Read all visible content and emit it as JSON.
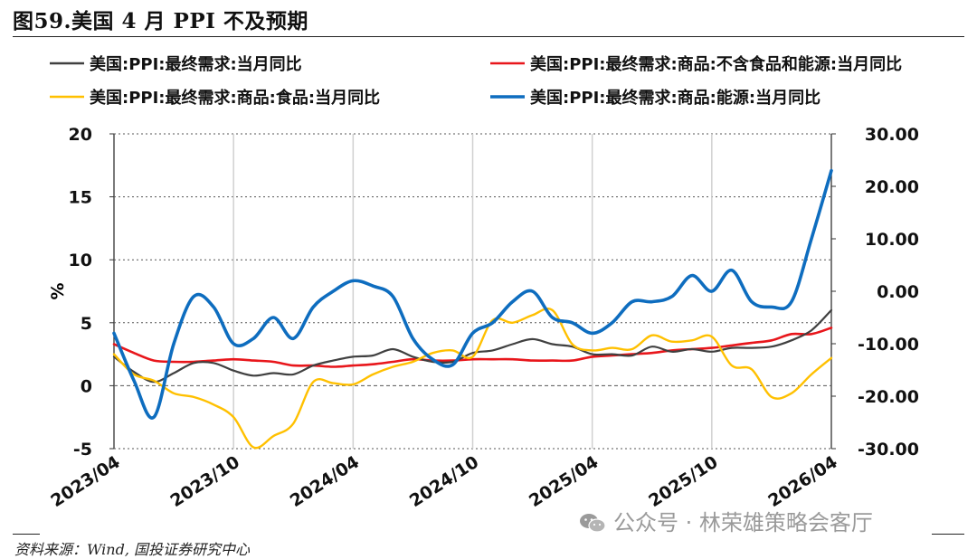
{
  "figure": {
    "title": "图59.美国 4 月 PPI 不及预期",
    "source": "资料来源：Wind, 国投证券研究中心",
    "watermark": "公众号 · 林荣雄策略会客厅"
  },
  "chart_data": {
    "type": "line",
    "title": "",
    "ylabel": "%",
    "ylim": [
      -5,
      20
    ],
    "y_ticks": [
      "20",
      "15",
      "10",
      "5",
      "0",
      "-5"
    ],
    "y2lim": [
      -30,
      30
    ],
    "y2_ticks": [
      "30.00",
      "20.00",
      "10.00",
      "0.00",
      "-10.00",
      "-20.00",
      "-30.00"
    ],
    "x_ticks": [
      "2023/04",
      "2023/10",
      "2024/04",
      "2024/10",
      "2025/04",
      "2025/10",
      "2026/04"
    ],
    "x_range": [
      "2023-04",
      "2026-04"
    ],
    "grid": true,
    "legend_position": "top",
    "series": [
      {
        "name": "美国:PPI:最终需求:当月同比",
        "color": "#404040",
        "axis": "left",
        "x": [
          "2023-04",
          "2023-05",
          "2023-06",
          "2023-07",
          "2023-08",
          "2023-09",
          "2023-10",
          "2023-11",
          "2023-12",
          "2024-01",
          "2024-02",
          "2024-03",
          "2024-04",
          "2024-05",
          "2024-06",
          "2024-07",
          "2024-08",
          "2024-09",
          "2024-10",
          "2024-11",
          "2024-12",
          "2025-01",
          "2025-02",
          "2025-03",
          "2025-04",
          "2025-05",
          "2025-06",
          "2025-07",
          "2025-08",
          "2025-09",
          "2025-10",
          "2025-11",
          "2025-12",
          "2026-01",
          "2026-02",
          "2026-03",
          "2026-04"
        ],
        "values": [
          2.3,
          1.1,
          0.3,
          1.0,
          1.8,
          1.8,
          1.2,
          0.8,
          1.0,
          0.9,
          1.6,
          2.0,
          2.3,
          2.4,
          2.9,
          2.3,
          1.9,
          1.9,
          2.6,
          2.8,
          3.3,
          3.7,
          3.3,
          3.1,
          2.5,
          2.5,
          2.4,
          3.1,
          2.7,
          2.9,
          2.7,
          3.0,
          3.0,
          3.1,
          3.6,
          4.4,
          6.0
        ]
      },
      {
        "name": "美国:PPI:最终需求:商品:不含食品和能源:当月同比",
        "color": "#e8161b",
        "axis": "left",
        "x": [
          "2023-04",
          "2023-05",
          "2023-06",
          "2023-07",
          "2023-08",
          "2023-09",
          "2023-10",
          "2023-11",
          "2023-12",
          "2024-01",
          "2024-02",
          "2024-03",
          "2024-04",
          "2024-05",
          "2024-06",
          "2024-07",
          "2024-08",
          "2024-09",
          "2024-10",
          "2024-11",
          "2024-12",
          "2025-01",
          "2025-02",
          "2025-03",
          "2025-04",
          "2025-05",
          "2025-06",
          "2025-07",
          "2025-08",
          "2025-09",
          "2025-10",
          "2025-11",
          "2025-12",
          "2026-01",
          "2026-02",
          "2026-03",
          "2026-04"
        ],
        "values": [
          3.3,
          2.6,
          2.0,
          1.9,
          1.9,
          2.0,
          2.1,
          2.0,
          1.9,
          1.6,
          1.6,
          1.5,
          1.6,
          1.7,
          1.9,
          2.1,
          2.0,
          2.0,
          2.1,
          2.1,
          2.1,
          2.0,
          2.0,
          2.0,
          2.3,
          2.4,
          2.5,
          2.6,
          2.8,
          2.9,
          3.0,
          3.2,
          3.4,
          3.6,
          4.1,
          4.1,
          4.6
        ]
      },
      {
        "name": "美国:PPI:最终需求:商品:食品:当月同比",
        "color": "#ffc000",
        "axis": "left",
        "x": [
          "2023-04",
          "2023-05",
          "2023-06",
          "2023-07",
          "2023-08",
          "2023-09",
          "2023-10",
          "2023-11",
          "2023-12",
          "2024-01",
          "2024-02",
          "2024-03",
          "2024-04",
          "2024-05",
          "2024-06",
          "2024-07",
          "2024-08",
          "2024-09",
          "2024-10",
          "2024-11",
          "2024-12",
          "2025-01",
          "2025-02",
          "2025-03",
          "2025-04",
          "2025-05",
          "2025-06",
          "2025-07",
          "2025-08",
          "2025-09",
          "2025-10",
          "2025-11",
          "2025-12",
          "2026-01",
          "2026-02",
          "2026-03",
          "2026-04"
        ],
        "values": [
          2.5,
          0.9,
          0.4,
          -0.6,
          -0.9,
          -1.5,
          -2.5,
          -4.9,
          -4.0,
          -3.0,
          0.3,
          0.2,
          0.1,
          0.9,
          1.5,
          1.9,
          2.6,
          2.8,
          2.3,
          5.2,
          5.0,
          5.6,
          6.0,
          3.3,
          2.8,
          3.0,
          2.9,
          4.0,
          3.5,
          3.6,
          3.9,
          1.6,
          1.3,
          -0.9,
          -0.6,
          0.9,
          2.2
        ]
      },
      {
        "name": "美国:PPI:最终需求:商品:能源:当月同比",
        "color": "#0e6dbf",
        "axis": "right",
        "x": [
          "2023-04",
          "2023-05",
          "2023-06",
          "2023-07",
          "2023-08",
          "2023-09",
          "2023-10",
          "2023-11",
          "2023-12",
          "2024-01",
          "2024-02",
          "2024-03",
          "2024-04",
          "2024-05",
          "2024-06",
          "2024-07",
          "2024-08",
          "2024-09",
          "2024-10",
          "2024-11",
          "2024-12",
          "2025-01",
          "2025-02",
          "2025-03",
          "2025-04",
          "2025-05",
          "2025-06",
          "2025-07",
          "2025-08",
          "2025-09",
          "2025-10",
          "2025-11",
          "2025-12",
          "2026-01",
          "2026-02",
          "2026-03",
          "2026-04"
        ],
        "values": [
          -8,
          -17,
          -24,
          -10,
          -1,
          -3,
          -10,
          -9,
          -5,
          -9,
          -3,
          0,
          2,
          1,
          -1,
          -9,
          -13,
          -14,
          -8,
          -6,
          -2,
          0,
          -5,
          -6,
          -8,
          -6,
          -2,
          -2,
          -1,
          3,
          0,
          4,
          -2,
          -3,
          -2,
          10,
          23
        ]
      }
    ]
  }
}
